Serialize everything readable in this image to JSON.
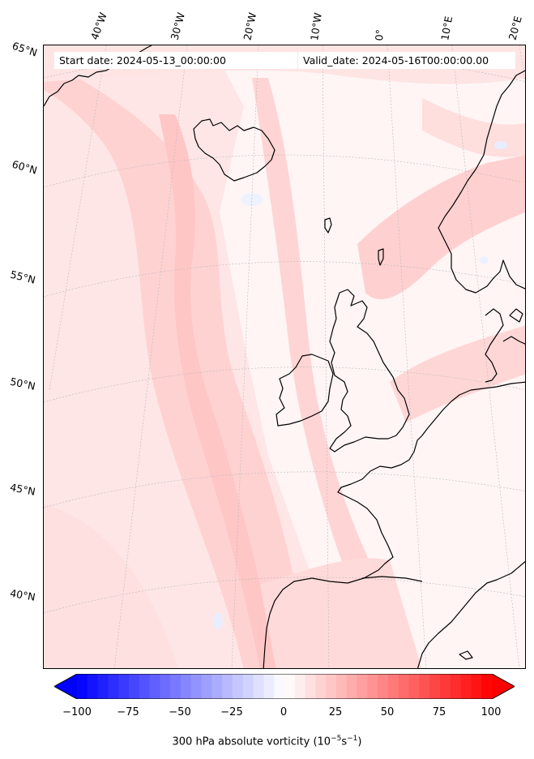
{
  "header": {
    "start_date": "Start date: 2024-05-13_00:00:00",
    "valid_date": "Valid_date: 2024-05-16T00:00:00.00"
  },
  "longitude_labels": [
    "40°W",
    "30°W",
    "20°W",
    "10°W",
    "0°",
    "10°E",
    "20°E"
  ],
  "latitude_labels": [
    "65°N",
    "60°N",
    "55°N",
    "50°N",
    "45°N",
    "40°N"
  ],
  "colorbar": {
    "ticks": [
      "−100",
      "−75",
      "−50",
      "−25",
      "0",
      "25",
      "50",
      "75",
      "100"
    ],
    "min": -100,
    "max": 100,
    "low_color": "#0000ff",
    "high_color": "#ff0000",
    "label_main": "300 hPa absolute vorticity (10",
    "label_sup1": "−5",
    "label_mid": "s",
    "label_sup2": "−1",
    "label_end": ")"
  },
  "colors": {
    "background_field": "#fff6f6",
    "light_red": "#ffdcdc",
    "medium_red": "#ffc4c4",
    "coastline": "#000000",
    "gridline": "#b0b0b0"
  }
}
